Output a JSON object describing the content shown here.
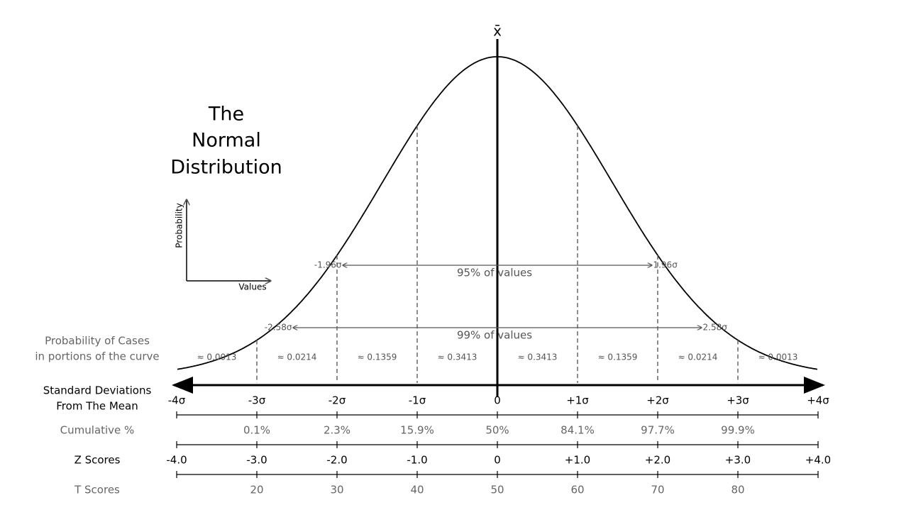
{
  "title": [
    "The",
    "Normal",
    "Distribution"
  ],
  "mean_symbol": "x̄",
  "inset": {
    "y_label": "Probability",
    "x_label": "Values"
  },
  "intervals": [
    {
      "left": "-1.96σ",
      "right": "1.96σ",
      "label": "95% of values"
    },
    {
      "left": "-2.58σ",
      "right": "2.58σ",
      "label": "99% of values"
    }
  ],
  "portions": {
    "label": [
      "Probability of Cases",
      "in portions of the curve"
    ],
    "values": [
      "≈ 0.0013",
      "≈ 0.0214",
      "≈ 0.1359",
      "≈ 0.3413",
      "≈ 0.3413",
      "≈ 0.1359",
      "≈ 0.0214",
      "≈ 0.0013"
    ]
  },
  "rows": [
    {
      "label": [
        "Standard Deviations",
        "From The Mean"
      ],
      "ticks": [
        "-4σ",
        "-3σ",
        "-2σ",
        "-1σ",
        "0",
        "+1σ",
        "+2σ",
        "+3σ",
        "+4σ"
      ]
    },
    {
      "label": [
        "Cumulative %"
      ],
      "ticks": [
        "0.1%",
        "2.3%",
        "15.9%",
        "50%",
        "84.1%",
        "97.7%",
        "99.9%"
      ]
    },
    {
      "label": [
        "Z Scores"
      ],
      "ticks": [
        "-4.0",
        "-3.0",
        "-2.0",
        "-1.0",
        "0",
        "+1.0",
        "+2.0",
        "+3.0",
        "+4.0"
      ]
    },
    {
      "label": [
        "T Scores"
      ],
      "ticks": [
        "20",
        "30",
        "40",
        "50",
        "60",
        "70",
        "80"
      ]
    }
  ]
}
